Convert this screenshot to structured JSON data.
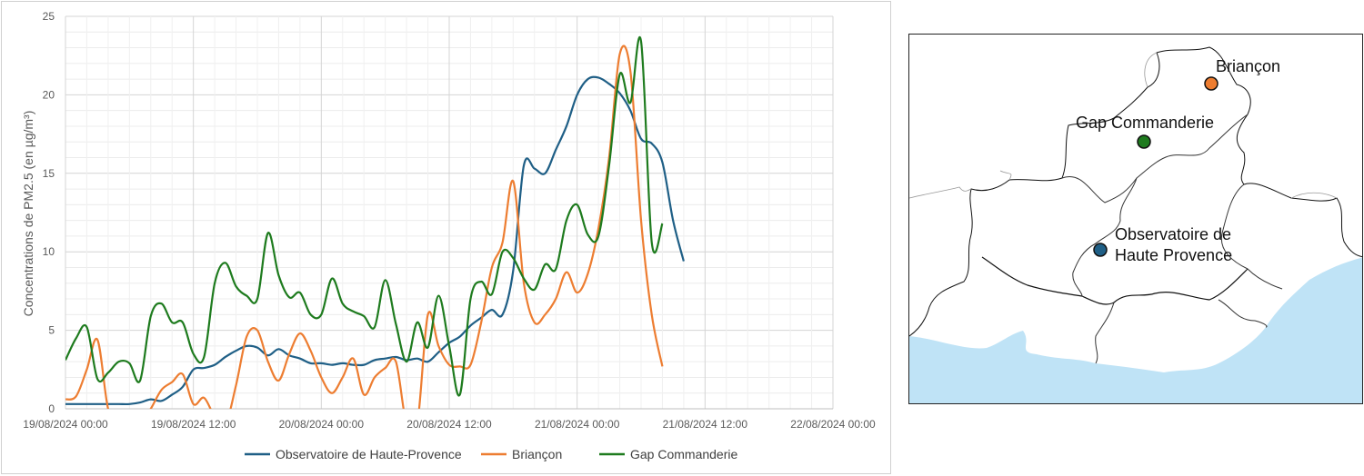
{
  "chart_data": {
    "type": "line",
    "ylabel": "Concentrations de PM2.5 (en µg/m³)",
    "xlabel": "",
    "ylim": [
      0,
      25
    ],
    "y_ticks": [
      0,
      5,
      10,
      15,
      20,
      25
    ],
    "x_ticks": [
      "19/08/2024 00:00",
      "19/08/2024 12:00",
      "20/08/2024 00:00",
      "20/08/2024 12:00",
      "21/08/2024 00:00",
      "21/08/2024 12:00",
      "22/08/2024 00:00"
    ],
    "x_unit": "hours since 19/08/2024 00:00",
    "xlim": [
      0,
      72
    ],
    "legend_position": "bottom",
    "grid": true,
    "series": [
      {
        "name": "Observatoire de Haute-Provence",
        "color": "#1f5f86",
        "x": [
          0,
          1,
          2,
          3,
          4,
          5,
          6,
          7,
          8,
          9,
          10,
          11,
          12,
          13,
          14,
          15,
          16,
          17,
          18,
          19,
          20,
          21,
          22,
          23,
          24,
          25,
          26,
          27,
          28,
          29,
          30,
          31,
          32,
          33,
          34,
          35,
          36,
          37,
          38,
          39,
          40,
          41,
          42,
          43,
          44,
          45,
          46,
          47,
          48,
          49,
          50,
          51,
          52,
          53,
          54,
          55,
          56,
          57,
          58,
          59,
          60,
          61,
          62,
          63,
          64
        ],
        "y": [
          0.3,
          0.3,
          0.3,
          0.3,
          0.3,
          0.3,
          0.3,
          0.4,
          0.6,
          0.5,
          0.9,
          1.4,
          2.5,
          2.6,
          2.8,
          3.3,
          3.7,
          4.0,
          3.9,
          3.4,
          3.8,
          3.4,
          3.2,
          2.9,
          2.9,
          2.8,
          2.9,
          2.8,
          2.8,
          3.1,
          3.2,
          3.3,
          3.1,
          3.2,
          3.0,
          3.6,
          4.2,
          4.6,
          5.3,
          5.8,
          6.3,
          6.0,
          8.8,
          15.5,
          15.3,
          15.0,
          16.5,
          18.0,
          20.0,
          21.0,
          21.1,
          20.7,
          20.1,
          19.0,
          17.2,
          16.9,
          15.7,
          12.0,
          9.4,
          null,
          null,
          null,
          null,
          null,
          null
        ]
      },
      {
        "name": "Briançon",
        "color": "#ed7d31",
        "x": [
          0,
          1,
          2,
          3,
          4,
          5,
          6,
          7,
          8,
          9,
          10,
          11,
          12,
          13,
          14,
          15,
          16,
          17,
          18,
          19,
          20,
          21,
          22,
          23,
          24,
          25,
          26,
          27,
          28,
          29,
          30,
          31,
          32,
          33,
          34,
          35,
          36,
          37,
          38,
          39,
          40,
          41,
          42,
          43,
          44,
          45,
          46,
          47,
          48,
          49,
          50,
          51,
          52,
          53,
          54,
          55,
          56,
          57,
          58,
          59,
          60,
          61,
          62,
          63,
          64
        ],
        "y": [
          0.6,
          0.8,
          2.5,
          4.4,
          0,
          -1,
          -1,
          -1,
          0,
          1.2,
          1.7,
          2.2,
          0.3,
          0.7,
          -0.5,
          -1,
          1.5,
          4.6,
          5.0,
          3.0,
          1.8,
          3.5,
          4.8,
          3.7,
          2.0,
          1.0,
          2.0,
          3.2,
          0.9,
          2.0,
          2.6,
          3.0,
          -1,
          -1,
          6.0,
          4.0,
          2.8,
          2.7,
          2.8,
          5.5,
          9.0,
          10.6,
          14.5,
          8.0,
          5.5,
          6.0,
          7.0,
          8.7,
          7.4,
          8.6,
          11.5,
          16.0,
          22.6,
          21.5,
          12.0,
          6.0,
          2.7,
          null,
          null,
          null,
          null,
          null,
          null,
          null,
          null
        ]
      },
      {
        "name": "Gap Commanderie",
        "color": "#1e7b1e",
        "x": [
          0,
          1,
          2,
          3,
          4,
          5,
          6,
          7,
          8,
          9,
          10,
          11,
          12,
          13,
          14,
          15,
          16,
          17,
          18,
          19,
          20,
          21,
          22,
          23,
          24,
          25,
          26,
          27,
          28,
          29,
          30,
          31,
          32,
          33,
          34,
          35,
          36,
          37,
          38,
          39,
          40,
          41,
          42,
          43,
          44,
          45,
          46,
          47,
          48,
          49,
          50,
          51,
          52,
          53,
          54,
          55,
          56,
          57,
          58,
          59,
          60,
          61,
          62,
          63,
          64
        ],
        "y": [
          3.1,
          4.5,
          5.2,
          1.9,
          2.3,
          3.0,
          2.9,
          1.8,
          5.9,
          6.7,
          5.5,
          5.5,
          3.5,
          3.3,
          8.0,
          9.3,
          7.8,
          7.2,
          7.0,
          11.2,
          8.5,
          7.1,
          7.4,
          6.0,
          6.0,
          8.3,
          6.7,
          6.2,
          5.9,
          5.2,
          8.2,
          5.4,
          3.0,
          5.5,
          3.9,
          7.2,
          4.0,
          0.9,
          7.0,
          8.1,
          7.3,
          10.0,
          9.6,
          8.3,
          7.6,
          9.2,
          8.9,
          12.0,
          13.0,
          11.1,
          11.0,
          15.5,
          21.3,
          19.5,
          23.4,
          10.6,
          11.8,
          null,
          null,
          null,
          null,
          null,
          null,
          null,
          null
        ]
      }
    ]
  },
  "map": {
    "sea_color": "#bfe3f6",
    "stations": [
      {
        "name": "Briançon",
        "color": "#ed7d31",
        "label_lines": [
          "Briançon"
        ]
      },
      {
        "name": "Gap Commanderie",
        "color": "#1e7b1e",
        "label_lines": [
          "Gap Commanderie"
        ]
      },
      {
        "name": "Observatoire de Haute Provence",
        "color": "#1f5f86",
        "label_lines": [
          "Observatoire de",
          "Haute Provence"
        ]
      }
    ]
  }
}
